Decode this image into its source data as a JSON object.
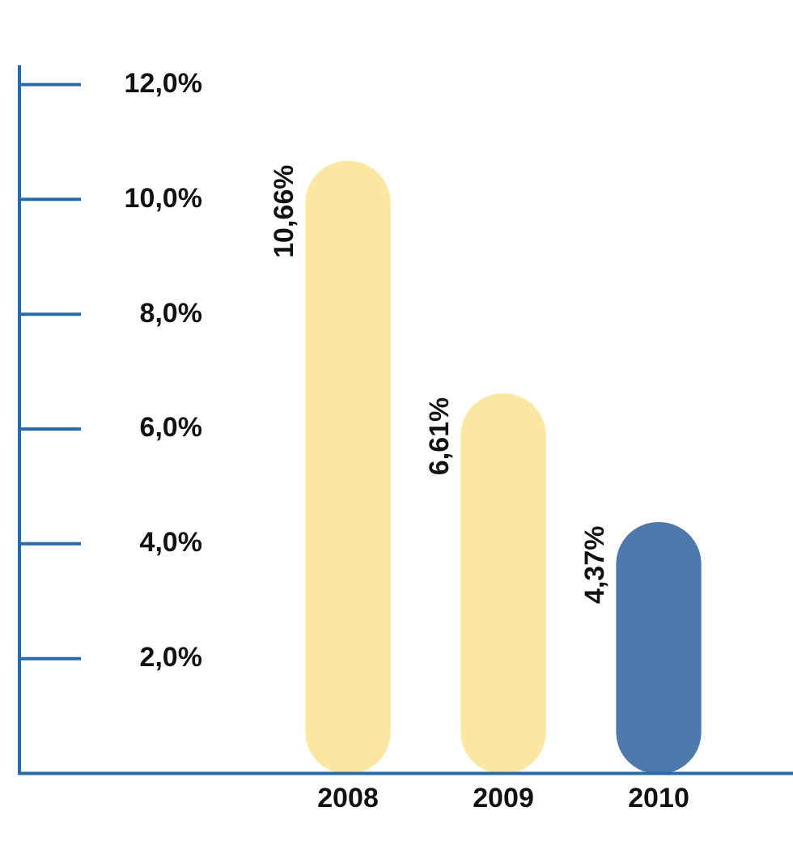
{
  "chart_data": {
    "type": "bar",
    "categories": [
      "2008",
      "2009",
      "2010"
    ],
    "values": [
      10.66,
      6.61,
      4.37
    ],
    "colors": [
      "#fbe7a1",
      "#fbe7a1",
      "#4d79ad"
    ],
    "value_labels": [
      "10,66%",
      "6,61%",
      "4,37%"
    ],
    "ylim": [
      0,
      12
    ],
    "yticks": [
      {
        "value": 0,
        "label": null
      },
      {
        "value": 2,
        "label": "2,0%"
      },
      {
        "value": 4,
        "label": "4,0%"
      },
      {
        "value": 6,
        "label": "6,0%"
      },
      {
        "value": 8,
        "label": "8,0%"
      },
      {
        "value": 10,
        "label": "10,0%"
      },
      {
        "value": 12,
        "label": "12,0%"
      }
    ],
    "grid": false,
    "legend": false
  }
}
